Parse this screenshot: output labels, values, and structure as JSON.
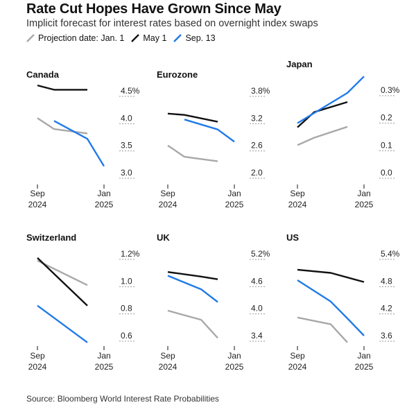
{
  "title": "Rate Cut Hopes Have Grown Since May",
  "subtitle": "Implicit forecast for interest rates based on overnight index swaps",
  "legend": [
    {
      "label": "Projection date: Jan. 1",
      "color": "#a8a8a8"
    },
    {
      "label": "May 1",
      "color": "#111111"
    },
    {
      "label": "Sep. 13",
      "color": "#1f7ae8"
    }
  ],
  "source": "Source: Bloomberg World Interest Rate Probabilities",
  "chart_data": [
    {
      "type": "line",
      "title": "Canada",
      "x_ticks": [
        {
          "month": "Sep",
          "year": "2024"
        },
        {
          "month": "Jan",
          "year": "2025"
        }
      ],
      "y_ticks": [
        "4.5%",
        "4.0",
        "3.5",
        "3.0"
      ],
      "ylim": [
        2.9,
        4.65
      ],
      "y_tick_values": [
        4.5,
        4.0,
        3.5,
        3.0
      ],
      "series": [
        {
          "color": "#a8a8a8",
          "x": [
            "Sep 2024",
            "Oct 2024",
            "Dec 2024"
          ],
          "values": [
            4.0,
            3.8,
            3.72
          ]
        },
        {
          "color": "#111111",
          "x": [
            "Sep 2024",
            "Oct 2024",
            "Dec 2024"
          ],
          "values": [
            4.6,
            4.52,
            4.52
          ]
        },
        {
          "color": "#1f7ae8",
          "x": [
            "Oct 2024",
            "Dec 2024",
            "Jan 2025"
          ],
          "values": [
            3.95,
            3.62,
            3.12
          ]
        }
      ]
    },
    {
      "type": "line",
      "title": "Eurozone",
      "x_ticks": [
        {
          "month": "Sep",
          "year": "2024"
        },
        {
          "month": "Jan",
          "year": "2025"
        }
      ],
      "y_ticks": [
        "3.8%",
        "3.2",
        "2.6",
        "2.0"
      ],
      "ylim": [
        1.9,
        4.0
      ],
      "y_tick_values": [
        3.8,
        3.2,
        2.6,
        2.0
      ],
      "series": [
        {
          "color": "#a8a8a8",
          "x": [
            "Sep 2024",
            "Oct 2024",
            "Dec 2024"
          ],
          "values": [
            2.6,
            2.35,
            2.25
          ]
        },
        {
          "color": "#111111",
          "x": [
            "Sep 2024",
            "Oct 2024",
            "Dec 2024"
          ],
          "values": [
            3.3,
            3.27,
            3.12
          ]
        },
        {
          "color": "#1f7ae8",
          "x": [
            "Oct 2024",
            "Dec 2024",
            "Jan 2025"
          ],
          "values": [
            3.17,
            2.95,
            2.68
          ]
        }
      ]
    },
    {
      "type": "line",
      "title": "Japan",
      "x_ticks": [
        {
          "month": "Sep",
          "year": "2024"
        },
        {
          "month": "Jan",
          "year": "2025"
        }
      ],
      "y_ticks": [
        "0.3%",
        "0.2",
        "0.1",
        "0.0"
      ],
      "ylim": [
        -0.01,
        0.35
      ],
      "y_tick_values": [
        0.3,
        0.2,
        0.1,
        0.0
      ],
      "series": [
        {
          "color": "#a8a8a8",
          "x": [
            "Sep 2024",
            "Oct 2024",
            "Dec 2024"
          ],
          "values": [
            0.1,
            0.127,
            0.167
          ]
        },
        {
          "color": "#111111",
          "x": [
            "Sep 2024",
            "Oct 2024",
            "Dec 2024"
          ],
          "values": [
            0.165,
            0.22,
            0.257
          ]
        },
        {
          "color": "#1f7ae8",
          "x": [
            "Sep 2024",
            "Dec 2024",
            "Jan 2025"
          ],
          "values": [
            0.18,
            0.29,
            0.35
          ]
        }
      ]
    },
    {
      "type": "line",
      "title": "Switzerland",
      "x_ticks": [
        {
          "month": "Sep",
          "year": "2024"
        },
        {
          "month": "Jan",
          "year": "2025"
        }
      ],
      "y_ticks": [
        "1.2%",
        "1.0",
        "0.8",
        "0.6"
      ],
      "ylim": [
        0.55,
        1.25
      ],
      "y_tick_values": [
        1.2,
        1.0,
        0.8,
        0.6
      ],
      "series": [
        {
          "color": "#a8a8a8",
          "x": [
            "Sep 2024",
            "Dec 2024"
          ],
          "values": [
            1.15,
            0.97
          ]
        },
        {
          "color": "#111111",
          "x": [
            "Sep 2024",
            "Dec 2024"
          ],
          "values": [
            1.17,
            0.82
          ]
        },
        {
          "color": "#1f7ae8",
          "x": [
            "Sep 2024",
            "Dec 2024"
          ],
          "values": [
            0.82,
            0.55
          ]
        }
      ]
    },
    {
      "type": "line",
      "title": "UK",
      "x_ticks": [
        {
          "month": "Sep",
          "year": "2024"
        },
        {
          "month": "Jan",
          "year": "2025"
        }
      ],
      "y_ticks": [
        "5.2%",
        "4.6",
        "4.0",
        "3.4"
      ],
      "ylim": [
        3.3,
        5.4
      ],
      "y_tick_values": [
        5.2,
        4.6,
        4.0,
        3.4
      ],
      "series": [
        {
          "color": "#a8a8a8",
          "x": [
            "Sep 2024",
            "Nov 2024",
            "Dec 2024"
          ],
          "values": [
            3.95,
            3.75,
            3.35
          ]
        },
        {
          "color": "#111111",
          "x": [
            "Sep 2024",
            "Nov 2024",
            "Dec 2024"
          ],
          "values": [
            4.8,
            4.7,
            4.64
          ]
        },
        {
          "color": "#1f7ae8",
          "x": [
            "Sep 2024",
            "Nov 2024",
            "Dec 2024"
          ],
          "values": [
            4.72,
            4.42,
            4.14
          ]
        }
      ]
    },
    {
      "type": "line",
      "title": "US",
      "x_ticks": [
        {
          "month": "Sep",
          "year": "2024"
        },
        {
          "month": "Jan",
          "year": "2025"
        }
      ],
      "y_ticks": [
        "5.4%",
        "4.8",
        "4.2",
        "3.6"
      ],
      "ylim": [
        3.5,
        5.6
      ],
      "y_tick_values": [
        5.4,
        4.8,
        4.2,
        3.6
      ],
      "series": [
        {
          "color": "#a8a8a8",
          "x": [
            "Sep 2024",
            "Nov 2024",
            "Dec 2024"
          ],
          "values": [
            4.0,
            3.85,
            3.45
          ]
        },
        {
          "color": "#111111",
          "x": [
            "Sep 2024",
            "Nov 2024",
            "Jan 2025"
          ],
          "values": [
            5.05,
            4.98,
            4.78
          ]
        },
        {
          "color": "#1f7ae8",
          "x": [
            "Sep 2024",
            "Nov 2024",
            "Dec 2024",
            "Jan 2025"
          ],
          "values": [
            4.82,
            4.35,
            3.98,
            3.6
          ]
        }
      ]
    }
  ]
}
